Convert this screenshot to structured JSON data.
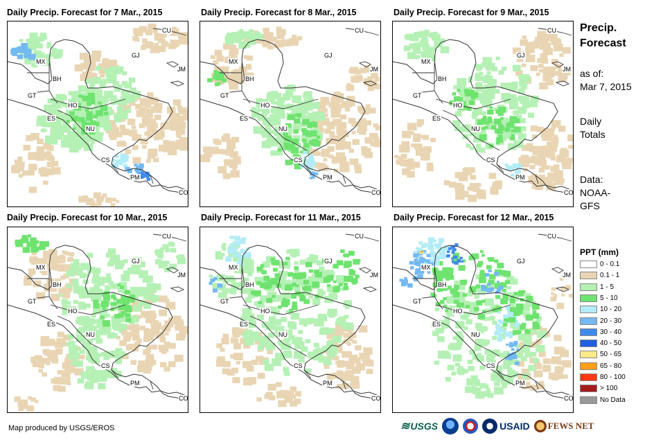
{
  "panels": [
    {
      "title": "Daily Precip. Forecast for 7 Mar., 2015"
    },
    {
      "title": "Daily Precip. Forecast for 8 Mar., 2015"
    },
    {
      "title": "Daily Precip. Forecast for 9 Mar., 2015"
    },
    {
      "title": "Daily Precip. Forecast for 10 Mar., 2015"
    },
    {
      "title": "Daily Precip. Forecast for 11 Mar., 2015"
    },
    {
      "title": "Daily Precip. Forecast for 12 Mar., 2015"
    }
  ],
  "country_labels": [
    "CU",
    "MX",
    "GJ",
    "JM",
    "BH",
    "GT",
    "HO",
    "ES",
    "NU",
    "CS",
    "PM",
    "CO"
  ],
  "sidebar": {
    "title_line1": "Precip.",
    "title_line2": "Forecast",
    "asof_label": "as of:",
    "asof_date": "Mar 7, 2015",
    "totals_line1": "Daily",
    "totals_line2": "Totals",
    "data_line1": "Data:",
    "data_line2": "NOAA-",
    "data_line3": "GFS"
  },
  "legend": {
    "title": "PPT (mm)",
    "items": [
      {
        "label": "0 - 0.1",
        "color": "#ffffff"
      },
      {
        "label": "0.1 - 1",
        "color": "#e9d5b3"
      },
      {
        "label": "1 - 5",
        "color": "#b5f0b5"
      },
      {
        "label": "5 - 10",
        "color": "#6fe36f"
      },
      {
        "label": "10 - 20",
        "color": "#b3ecf7"
      },
      {
        "label": "20 - 30",
        "color": "#74b9f2"
      },
      {
        "label": "30 - 40",
        "color": "#3e8aec"
      },
      {
        "label": "40 - 50",
        "color": "#1f5fe0"
      },
      {
        "label": "50 - 65",
        "color": "#ffe98a"
      },
      {
        "label": "65 - 80",
        "color": "#ff9e1a"
      },
      {
        "label": "80 - 100",
        "color": "#ff3a12"
      },
      {
        "label": "> 100",
        "color": "#a31c1c"
      },
      {
        "label": "No Data",
        "color": "#999999"
      }
    ]
  },
  "footer": {
    "produced_by": "Map produced by USGS/EROS",
    "logos": {
      "usgs": "USGS",
      "usaid": "USAID",
      "fewsnet": "FEWS NET"
    }
  }
}
